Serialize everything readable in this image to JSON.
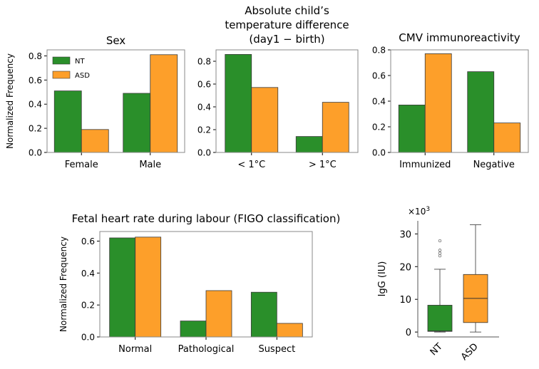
{
  "colors": {
    "NT": "#2a8f2a",
    "ASD": "#fd9f2a"
  },
  "legend": [
    "NT",
    "ASD"
  ],
  "chart_data": [
    {
      "type": "bar",
      "title": [
        "Sex"
      ],
      "ylabel": "Normalized Frequency",
      "categories": [
        "Female",
        "Male"
      ],
      "series": [
        {
          "name": "NT",
          "values": [
            0.51,
            0.49
          ]
        },
        {
          "name": "ASD",
          "values": [
            0.19,
            0.81
          ]
        }
      ],
      "ylim": [
        0,
        0.85
      ],
      "yticks": [
        "0.0",
        "0.2",
        "0.4",
        "0.6",
        "0.8"
      ],
      "legend_placement": "top-left"
    },
    {
      "type": "bar",
      "title": [
        "Absolute child’s",
        "temperature difference",
        "(day1 − birth)"
      ],
      "ylabel": "",
      "categories": [
        "< 1°C",
        "> 1°C"
      ],
      "series": [
        {
          "name": "NT",
          "values": [
            0.86,
            0.14
          ]
        },
        {
          "name": "ASD",
          "values": [
            0.57,
            0.44
          ]
        }
      ],
      "ylim": [
        0,
        0.9
      ],
      "yticks": [
        "0.0",
        "0.2",
        "0.4",
        "0.6",
        "0.8"
      ]
    },
    {
      "type": "bar",
      "title": [
        "CMV immunoreactivity"
      ],
      "ylabel": "",
      "categories": [
        "Immunized",
        "Negative"
      ],
      "series": [
        {
          "name": "NT",
          "values": [
            0.37,
            0.63
          ]
        },
        {
          "name": "ASD",
          "values": [
            0.77,
            0.23
          ]
        }
      ],
      "ylim": [
        0,
        0.8
      ],
      "yticks": [
        "0.0",
        "0.2",
        "0.4",
        "0.6",
        "0.8"
      ]
    },
    {
      "type": "bar",
      "title": [
        "Fetal heart rate during labour (FIGO classification)"
      ],
      "ylabel": "Normalized Frequency",
      "categories": [
        "Normal",
        "Pathological",
        "Suspect"
      ],
      "series": [
        {
          "name": "NT",
          "values": [
            0.62,
            0.1,
            0.28
          ]
        },
        {
          "name": "ASD",
          "values": [
            0.625,
            0.29,
            0.085
          ]
        }
      ],
      "ylim": [
        0,
        0.66
      ],
      "yticks": [
        "0.0",
        "0.2",
        "0.4",
        "0.6"
      ]
    },
    {
      "type": "box",
      "title": [],
      "ylabel": "IgG (IU)",
      "exponent_label": "×10",
      "exponent_power": "3",
      "categories": [
        "NT",
        "ASD"
      ],
      "boxes": [
        {
          "name": "NT",
          "min": 0,
          "q1": 0.2,
          "median": 0.3,
          "q3": 8.2,
          "max": 19.2,
          "outliers": [
            23.3,
            24.1,
            25.0,
            27.9
          ]
        },
        {
          "name": "ASD",
          "min": 0,
          "q1": 2.9,
          "median": 10.3,
          "q3": 17.6,
          "max": 32.8,
          "outliers": []
        }
      ],
      "ylim": [
        -1.5,
        34
      ],
      "yticks": [
        "0",
        "10",
        "20",
        "30"
      ]
    }
  ]
}
